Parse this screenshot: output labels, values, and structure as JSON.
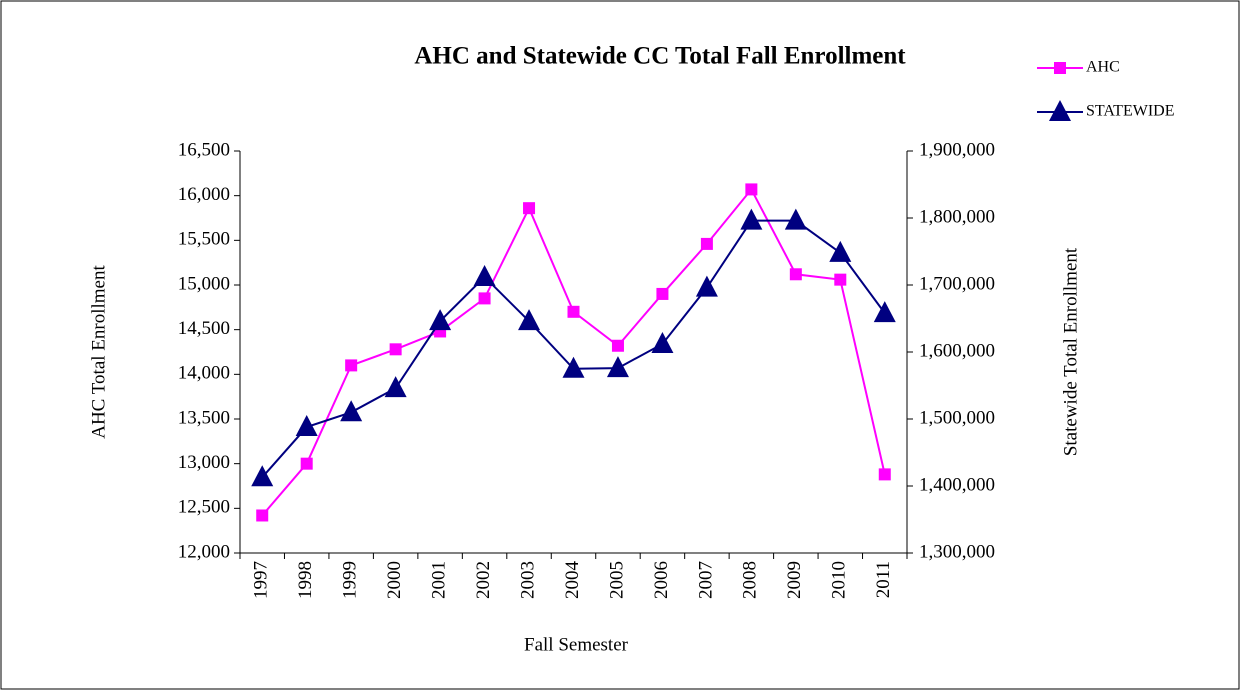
{
  "chart_data": {
    "type": "line",
    "title": "AHC and Statewide CC Total Fall Enrollment",
    "x_label": "Fall Semester",
    "y_label": "AHC Total Enrollment",
    "y2_label": "Statewide Total Enrollment",
    "categories": [
      "1997",
      "1998",
      "1999",
      "2000",
      "2001",
      "2002",
      "2003",
      "2004",
      "2005",
      "2006",
      "2007",
      "2008",
      "2009",
      "2010",
      "2011"
    ],
    "series": [
      {
        "name": "AHC",
        "color": "#ff00ff",
        "marker": "square",
        "values": [
          12420,
          13000,
          14100,
          14280,
          14480,
          14850,
          15860,
          14700,
          14320,
          14900,
          15460,
          16070,
          15120,
          15060,
          12880
        ]
      },
      {
        "name": "STATEWIDE",
        "color": "#000080",
        "marker": "triangle",
        "axis": "y2",
        "values": [
          1413000,
          1488000,
          1510000,
          1546000,
          1646000,
          1712000,
          1646000,
          1575000,
          1576000,
          1612000,
          1696000,
          1796000,
          1796000,
          1748000,
          1658000
        ]
      }
    ],
    "ylim": [
      12000,
      16500
    ],
    "yticks": [
      {
        "value": 12000,
        "label": "12,000"
      },
      {
        "value": 12500,
        "label": "12,500"
      },
      {
        "value": 13000,
        "label": "13,000"
      },
      {
        "value": 13500,
        "label": "13,500"
      },
      {
        "value": 14000,
        "label": "14,000"
      },
      {
        "value": 14500,
        "label": "14,500"
      },
      {
        "value": 15000,
        "label": "15,000"
      },
      {
        "value": 15500,
        "label": "15,500"
      },
      {
        "value": 16000,
        "label": "16,000"
      },
      {
        "value": 16500,
        "label": "16,500"
      }
    ],
    "y2lim": [
      1300000,
      1900000
    ],
    "y2ticks": [
      {
        "value": 1300000,
        "label": "1,300,000"
      },
      {
        "value": 1400000,
        "label": "1,400,000"
      },
      {
        "value": 1500000,
        "label": "1,500,000"
      },
      {
        "value": 1600000,
        "label": "1,600,000"
      },
      {
        "value": 1700000,
        "label": "1,700,000"
      },
      {
        "value": 1800000,
        "label": "1,800,000"
      },
      {
        "value": 1900000,
        "label": "1,900,000"
      }
    ],
    "grid": false,
    "legend": "top-right"
  }
}
